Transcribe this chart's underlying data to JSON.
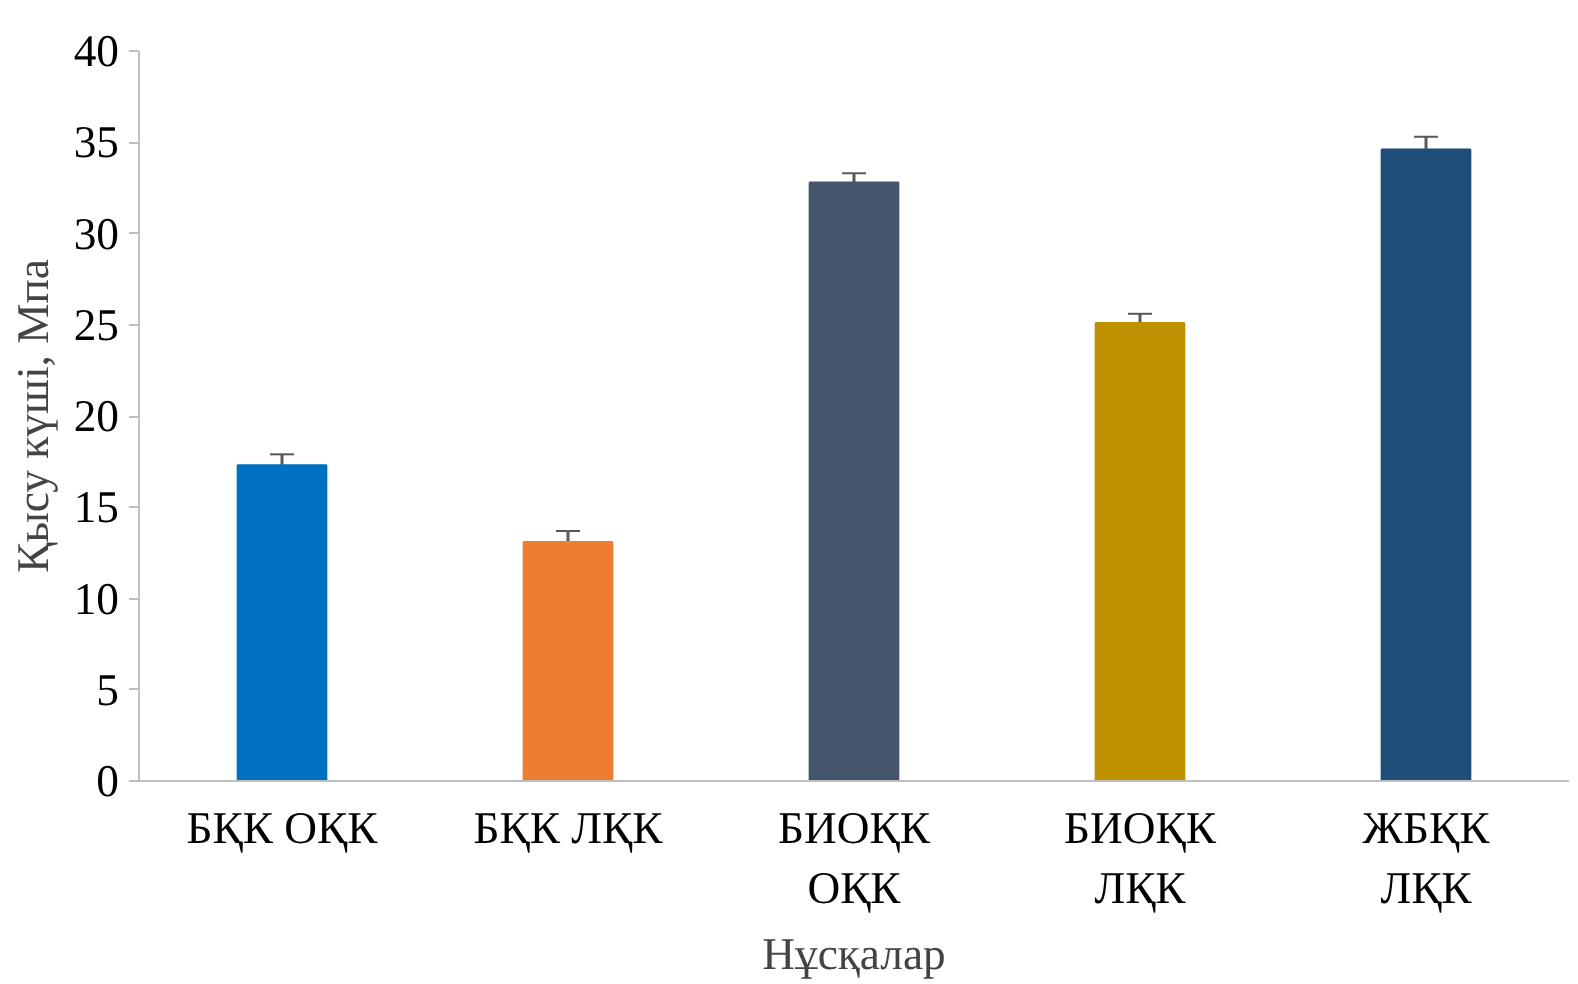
{
  "chart_data": {
    "type": "bar",
    "xlabel": "Нұсқалар",
    "ylabel": "Қысу күші, Мпа",
    "categories": [
      "БҚК ОҚК",
      "БҚК ЛҚК",
      "БИОҚК\nОҚК",
      "БИОҚК\nЛҚК",
      "ЖБҚК\nЛҚК"
    ],
    "values": [
      17.3,
      13.1,
      32.8,
      25.1,
      34.6
    ],
    "errors": [
      0.6,
      0.6,
      0.5,
      0.5,
      0.7
    ],
    "colors": [
      "#0070c0",
      "#ed7d31",
      "#44546a",
      "#bf9000",
      "#1f4e79"
    ],
    "ylim": [
      0,
      40
    ],
    "yticks": [
      0,
      5,
      10,
      15,
      20,
      25,
      30,
      35,
      40
    ],
    "grid": false
  }
}
